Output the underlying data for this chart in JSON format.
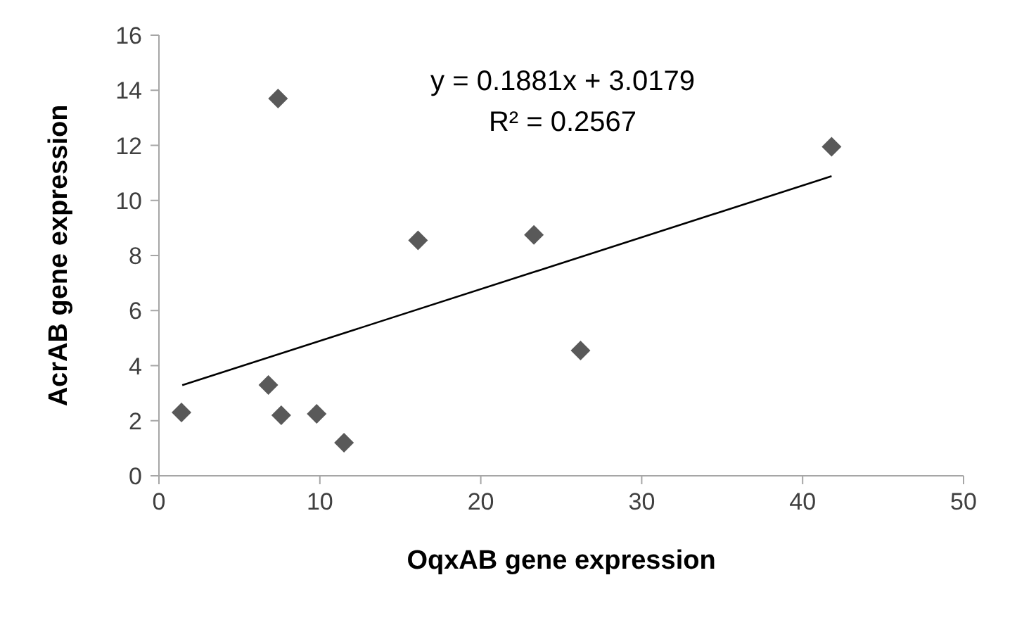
{
  "chart_data": {
    "type": "scatter",
    "xlabel": "OqxAB gene expression",
    "ylabel": "AcrAB gene expression",
    "annotations": [
      "y = 0.1881x + 3.0179",
      "R² = 0.2567"
    ],
    "xlim": [
      0,
      50
    ],
    "xticks": [
      0,
      10,
      20,
      30,
      40,
      50
    ],
    "ylim": [
      0,
      16
    ],
    "yticks": [
      0,
      2,
      4,
      6,
      8,
      10,
      12,
      14,
      16
    ],
    "grid": false,
    "series": [
      {
        "marker": "diamond",
        "color": "#595959",
        "x": [
          1.4,
          6.8,
          7.6,
          7.4,
          9.8,
          11.5,
          16.1,
          23.3,
          26.2,
          41.8
        ],
        "values": [
          2.3,
          3.3,
          2.2,
          13.7,
          2.25,
          1.2,
          8.55,
          8.75,
          4.55,
          11.95
        ]
      },
      {
        "type": "line",
        "marker": "none",
        "color": "#000000",
        "x": [
          1.45,
          41.8
        ],
        "values": [
          3.29,
          10.88
        ]
      }
    ]
  }
}
